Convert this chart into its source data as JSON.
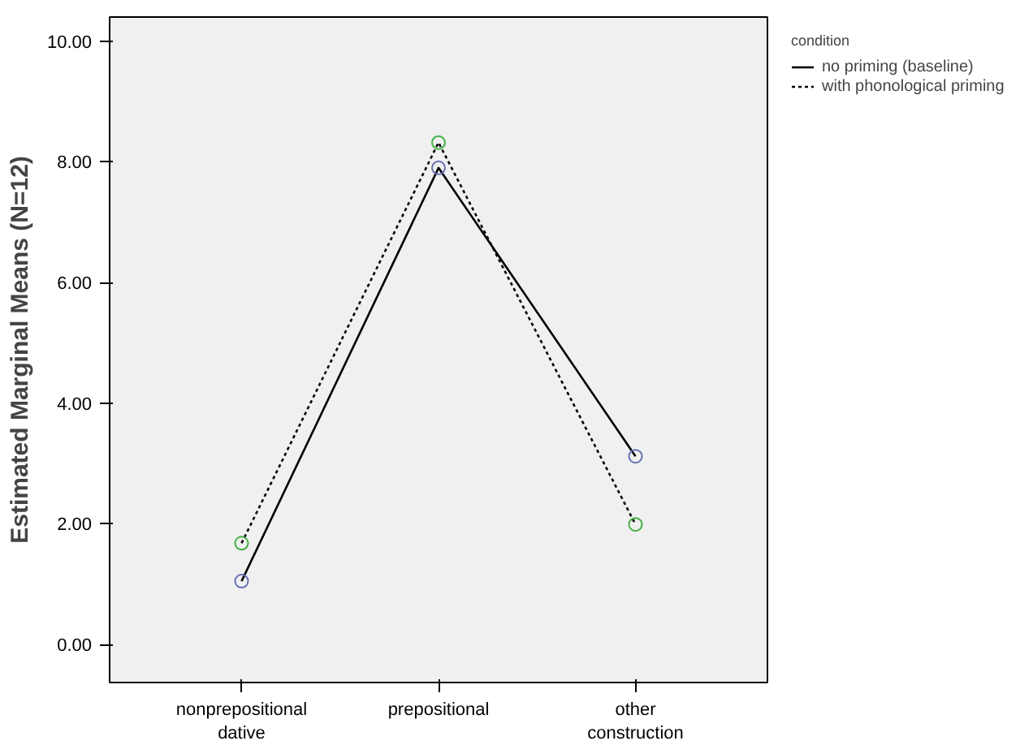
{
  "chart_data": {
    "type": "line",
    "ylabel": "Estimated Marginal Means (N=12)",
    "legend_title": "condition",
    "categories": [
      "nonprepositional dative",
      "prepositional",
      "other construction"
    ],
    "series": [
      {
        "name": "no priming (baseline)",
        "color": "#6670b5",
        "line_style": "solid",
        "values": [
          1.05,
          7.9,
          3.12
        ]
      },
      {
        "name": "with phonological priming",
        "color": "#44b044",
        "line_style": "dotted",
        "values": [
          1.68,
          8.32,
          1.99
        ]
      }
    ],
    "ylim": [
      -0.63,
      10.4
    ],
    "yticks": [
      {
        "value": 0,
        "label": "0.00"
      },
      {
        "value": 2,
        "label": "2.00"
      },
      {
        "value": 4,
        "label": "4.00"
      },
      {
        "value": 6,
        "label": "6.00"
      },
      {
        "value": 8,
        "label": "8.00"
      },
      {
        "value": 10,
        "label": "10.00"
      }
    ],
    "marker": "circle",
    "grid": false,
    "legend": "top right"
  }
}
